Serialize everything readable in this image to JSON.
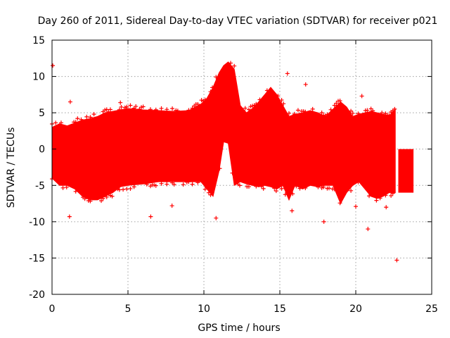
{
  "chart_data": {
    "type": "scatter",
    "title": "Day 260 of 2011, Sidereal Day-to-day VTEC variation (SDTVAR) for receiver p021",
    "xlabel": "GPS time / hours",
    "ylabel": "SDTVAR / TECUs",
    "xlim": [
      0,
      25
    ],
    "ylim": [
      -20,
      15
    ],
    "xticks": [
      "0",
      "5",
      "10",
      "15",
      "20",
      "25"
    ],
    "yticks": [
      "15",
      "10",
      "5",
      "0",
      "-5",
      "-10",
      "-15",
      "-20"
    ],
    "grid": true,
    "marker": "plus",
    "color": "#ff0000",
    "series": [
      {
        "name": "SDTVAR",
        "band_x": [
          0.0,
          0.5,
          1.0,
          1.5,
          2.0,
          2.5,
          3.0,
          3.5,
          4.0,
          4.5,
          5.0,
          6.0,
          7.0,
          8.0,
          9.0,
          9.8,
          10.2,
          10.6,
          11.0,
          11.3,
          11.6,
          12.0,
          12.4,
          12.8,
          13.2,
          13.6,
          14.0,
          14.4,
          14.8,
          15.2,
          15.6,
          16.0,
          16.5,
          17.0,
          17.5,
          18.0,
          18.5,
          19.0,
          19.4,
          19.8,
          20.2,
          20.6,
          21.0,
          21.4,
          21.8,
          22.2,
          22.6
        ],
        "band_upper": [
          3.0,
          3.5,
          3.2,
          3.6,
          4.0,
          4.2,
          4.5,
          5.0,
          5.2,
          5.4,
          5.6,
          5.4,
          5.3,
          5.2,
          5.3,
          6.2,
          7.0,
          8.5,
          10.5,
          11.5,
          12.0,
          11.0,
          6.0,
          5.0,
          5.6,
          6.5,
          7.5,
          8.5,
          7.5,
          6.0,
          4.5,
          4.8,
          5.0,
          5.3,
          5.0,
          4.5,
          5.5,
          6.5,
          5.8,
          4.5,
          4.8,
          5.0,
          5.2,
          5.0,
          4.8,
          4.6,
          5.5
        ],
        "band_lower": [
          -4.0,
          -5.0,
          -5.0,
          -5.5,
          -6.5,
          -7.0,
          -7.0,
          -6.5,
          -6.0,
          -5.2,
          -5.0,
          -4.8,
          -4.5,
          -4.5,
          -4.5,
          -4.5,
          -5.5,
          -6.5,
          -3.0,
          1.0,
          0.8,
          -5.0,
          -4.5,
          -4.8,
          -5.0,
          -5.2,
          -5.0,
          -5.2,
          -5.5,
          -5.0,
          -7.0,
          -5.0,
          -5.5,
          -5.0,
          -5.2,
          -5.0,
          -5.0,
          -7.5,
          -6.0,
          -5.0,
          -4.5,
          -5.5,
          -6.5,
          -6.8,
          -6.5,
          -6.0,
          -6.0
        ],
        "cap_x": [
          22.8,
          23.8
        ],
        "cap_range": [
          -6.0,
          0.0
        ],
        "outliers": [
          {
            "x": 0.05,
            "y": 11.5
          },
          {
            "x": 1.15,
            "y": -9.3
          },
          {
            "x": 1.2,
            "y": 6.5
          },
          {
            "x": 4.5,
            "y": 6.4
          },
          {
            "x": 6.5,
            "y": -9.3
          },
          {
            "x": 7.9,
            "y": -7.8
          },
          {
            "x": 10.8,
            "y": -9.5
          },
          {
            "x": 15.5,
            "y": 10.4
          },
          {
            "x": 15.8,
            "y": -8.5
          },
          {
            "x": 16.7,
            "y": 8.9
          },
          {
            "x": 17.9,
            "y": -10.0
          },
          {
            "x": 20.0,
            "y": -7.9
          },
          {
            "x": 20.4,
            "y": 7.3
          },
          {
            "x": 20.8,
            "y": -11.0
          },
          {
            "x": 22.7,
            "y": -15.3
          },
          {
            "x": 22.0,
            "y": -8.0
          }
        ]
      }
    ]
  }
}
